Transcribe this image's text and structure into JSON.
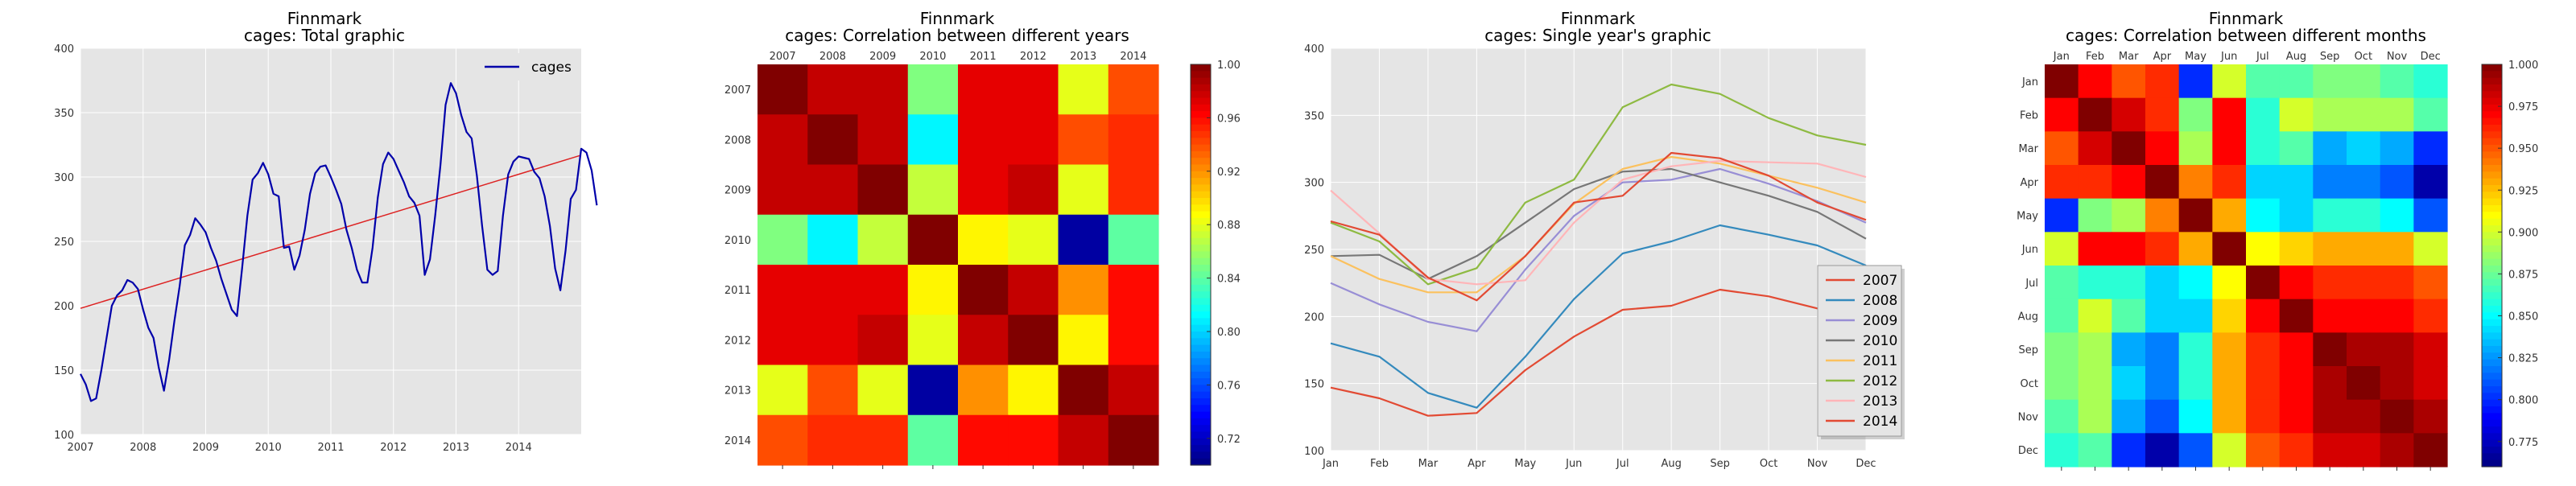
{
  "chart_data": [
    {
      "type": "line",
      "title": "Finnmark",
      "subtitle": "cages: Total graphic",
      "x_ticks": [
        "2007",
        "2008",
        "2009",
        "2010",
        "2011",
        "2012",
        "2013",
        "2014"
      ],
      "y_ticks": [
        "100",
        "150",
        "200",
        "250",
        "300",
        "350",
        "400"
      ],
      "xlim": [
        2007,
        2015
      ],
      "ylim": [
        100,
        400
      ],
      "grid": true,
      "legend_position": "top-right",
      "series": [
        {
          "name": "cages",
          "color": "#0000aa",
          "x_start": 2007,
          "x_step_months": 1,
          "values": [
            147,
            139,
            126,
            128,
            150,
            175,
            200,
            208,
            212,
            220,
            218,
            213,
            197,
            183,
            175,
            152,
            134,
            158,
            188,
            215,
            247,
            255,
            268,
            263,
            257,
            245,
            235,
            221,
            209,
            197,
            192,
            230,
            270,
            298,
            303,
            311,
            302,
            287,
            285,
            245,
            246,
            228,
            239,
            259,
            287,
            303,
            308,
            309,
            300,
            290,
            279,
            259,
            245,
            228,
            218,
            218,
            245,
            284,
            310,
            319,
            314,
            305,
            296,
            285,
            280,
            270,
            224,
            236,
            270,
            309,
            356,
            373,
            365,
            348,
            335,
            330,
            301,
            262,
            228,
            224,
            227,
            270,
            302,
            312,
            316,
            315,
            314,
            304,
            299,
            285,
            262,
            229,
            212,
            243,
            283,
            290,
            322,
            319,
            305,
            278
          ]
        },
        {
          "name": "trend",
          "color": "#dd2222",
          "values_at_xlim": [
            198,
            317
          ]
        }
      ]
    },
    {
      "type": "heatmap",
      "title": "Finnmark",
      "subtitle": "cages: Correlation between different years",
      "labels": [
        "2007",
        "2008",
        "2009",
        "2010",
        "2011",
        "2012",
        "2013",
        "2014"
      ],
      "colorbar_ticks": [
        "0.72",
        "0.76",
        "0.80",
        "0.84",
        "0.88",
        "0.92",
        "0.96",
        "1.00"
      ],
      "vmin": 0.7,
      "vmax": 1.0,
      "matrix": [
        [
          1.0,
          0.98,
          0.98,
          0.85,
          0.97,
          0.97,
          0.88,
          0.94
        ],
        [
          0.98,
          1.0,
          0.98,
          0.81,
          0.97,
          0.97,
          0.94,
          0.95
        ],
        [
          0.98,
          0.98,
          1.0,
          0.87,
          0.97,
          0.98,
          0.88,
          0.95
        ],
        [
          0.85,
          0.81,
          0.87,
          1.0,
          0.89,
          0.88,
          0.71,
          0.84
        ],
        [
          0.97,
          0.97,
          0.97,
          0.89,
          1.0,
          0.98,
          0.92,
          0.96
        ],
        [
          0.97,
          0.97,
          0.98,
          0.88,
          0.98,
          1.0,
          0.89,
          0.96
        ],
        [
          0.88,
          0.94,
          0.88,
          0.71,
          0.92,
          0.89,
          1.0,
          0.98
        ],
        [
          0.94,
          0.95,
          0.95,
          0.84,
          0.96,
          0.96,
          0.98,
          1.0
        ]
      ]
    },
    {
      "type": "line",
      "title": "Finnmark",
      "subtitle": "cages: Single year's graphic",
      "categories": [
        "Jan",
        "Feb",
        "Mar",
        "Apr",
        "May",
        "Jun",
        "Jul",
        "Aug",
        "Sep",
        "Oct",
        "Nov",
        "Dec"
      ],
      "y_ticks": [
        "100",
        "150",
        "200",
        "250",
        "300",
        "350",
        "400"
      ],
      "ylim": [
        100,
        400
      ],
      "grid": true,
      "legend_position": "bottom-right",
      "series": [
        {
          "name": "2007",
          "color": "#e24a33",
          "values": [
            147,
            139,
            126,
            128,
            160,
            185,
            205,
            208,
            220,
            215,
            206,
            197
          ]
        },
        {
          "name": "2008",
          "color": "#348abd",
          "values": [
            180,
            170,
            143,
            132,
            170,
            213,
            247,
            256,
            268,
            261,
            253,
            238
          ]
        },
        {
          "name": "2009",
          "color": "#988ed5",
          "values": [
            225,
            209,
            196,
            189,
            235,
            275,
            300,
            302,
            310,
            299,
            286,
            270
          ]
        },
        {
          "name": "2010",
          "color": "#777777",
          "values": [
            245,
            246,
            228,
            245,
            270,
            295,
            308,
            310,
            300,
            290,
            278,
            258
          ]
        },
        {
          "name": "2011",
          "color": "#fbc15e",
          "values": [
            245,
            228,
            218,
            218,
            245,
            284,
            310,
            319,
            314,
            305,
            296,
            285
          ]
        },
        {
          "name": "2012",
          "color": "#8eba42",
          "values": [
            270,
            256,
            224,
            236,
            285,
            302,
            356,
            373,
            366,
            348,
            335,
            328
          ]
        },
        {
          "name": "2013",
          "color": "#ffb5b8",
          "values": [
            294,
            262,
            228,
            224,
            227,
            270,
            302,
            312,
            316,
            315,
            314,
            304
          ]
        },
        {
          "name": "2014",
          "color": "#e24a33",
          "values": [
            271,
            261,
            229,
            212,
            245,
            285,
            290,
            322,
            318,
            305,
            285,
            272
          ]
        }
      ]
    },
    {
      "type": "heatmap",
      "title": "Finnmark",
      "subtitle": "cages: Correlation between different months",
      "labels": [
        "Jan",
        "Feb",
        "Mar",
        "Apr",
        "May",
        "Jun",
        "Jul",
        "Aug",
        "Sep",
        "Oct",
        "Nov",
        "Dec"
      ],
      "colorbar_ticks": [
        "0.775",
        "0.800",
        "0.825",
        "0.850",
        "0.875",
        "0.900",
        "0.925",
        "0.950",
        "0.975",
        "1.000"
      ],
      "vmin": 0.76,
      "vmax": 1.0,
      "matrix": [
        [
          1.0,
          0.97,
          0.95,
          0.96,
          0.8,
          0.9,
          0.87,
          0.87,
          0.88,
          0.88,
          0.87,
          0.86
        ],
        [
          0.97,
          1.0,
          0.98,
          0.96,
          0.88,
          0.97,
          0.86,
          0.9,
          0.89,
          0.89,
          0.89,
          0.87
        ],
        [
          0.95,
          0.98,
          1.0,
          0.97,
          0.89,
          0.97,
          0.86,
          0.87,
          0.83,
          0.84,
          0.83,
          0.8
        ],
        [
          0.96,
          0.96,
          0.97,
          1.0,
          0.94,
          0.96,
          0.84,
          0.84,
          0.82,
          0.82,
          0.81,
          0.77
        ],
        [
          0.8,
          0.88,
          0.89,
          0.94,
          1.0,
          0.93,
          0.85,
          0.84,
          0.86,
          0.86,
          0.85,
          0.81
        ],
        [
          0.9,
          0.97,
          0.97,
          0.96,
          0.93,
          1.0,
          0.91,
          0.92,
          0.93,
          0.93,
          0.93,
          0.9
        ],
        [
          0.87,
          0.86,
          0.86,
          0.84,
          0.85,
          0.91,
          1.0,
          0.97,
          0.96,
          0.96,
          0.96,
          0.95
        ],
        [
          0.87,
          0.9,
          0.87,
          0.84,
          0.84,
          0.92,
          0.97,
          1.0,
          0.97,
          0.97,
          0.97,
          0.96
        ],
        [
          0.88,
          0.89,
          0.83,
          0.82,
          0.86,
          0.93,
          0.96,
          0.97,
          1.0,
          0.99,
          0.99,
          0.98
        ],
        [
          0.88,
          0.89,
          0.84,
          0.82,
          0.86,
          0.93,
          0.96,
          0.97,
          0.99,
          1.0,
          0.99,
          0.98
        ],
        [
          0.87,
          0.89,
          0.83,
          0.81,
          0.85,
          0.93,
          0.96,
          0.97,
          0.99,
          0.99,
          1.0,
          0.99
        ],
        [
          0.86,
          0.87,
          0.8,
          0.77,
          0.81,
          0.9,
          0.95,
          0.96,
          0.98,
          0.98,
          0.99,
          1.0
        ]
      ]
    }
  ]
}
